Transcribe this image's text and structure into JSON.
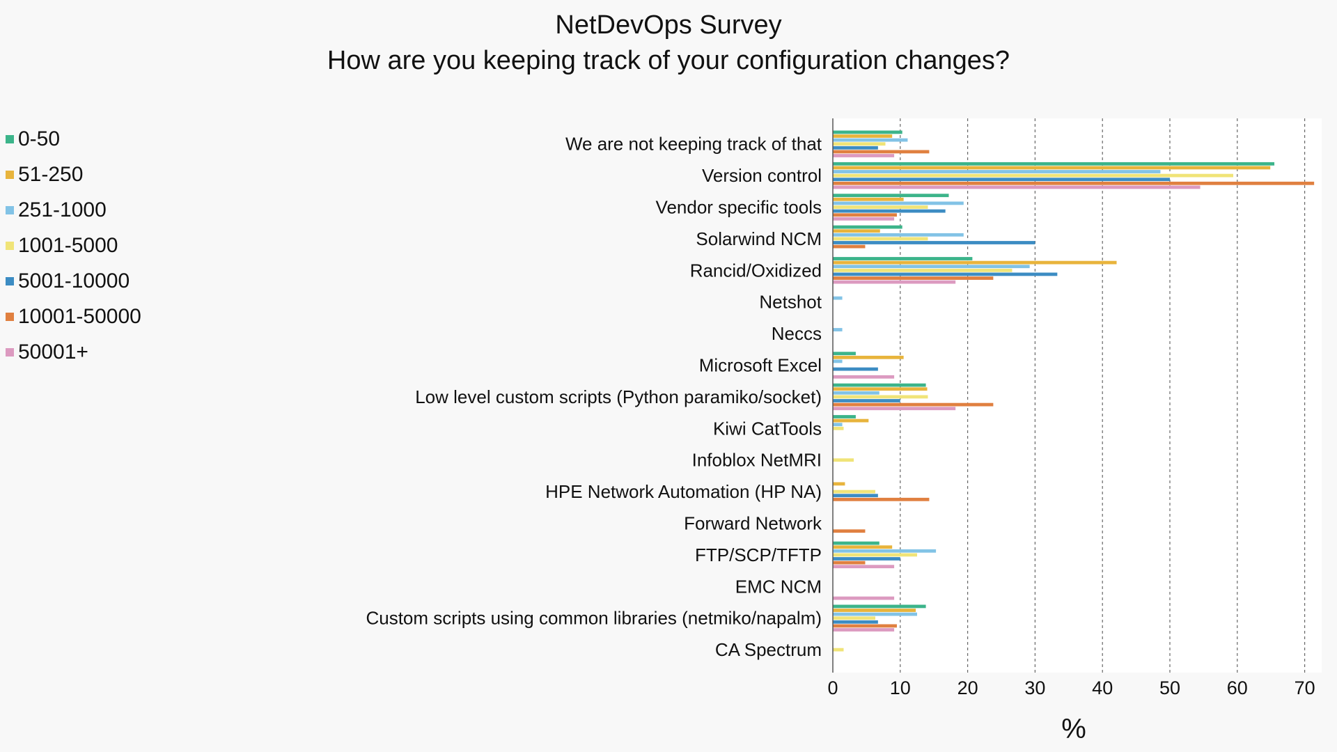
{
  "chart_data": {
    "type": "bar",
    "orientation": "horizontal",
    "title": "NetDevOps Survey",
    "subtitle": "How are you keeping track of your configuration changes?",
    "xlabel": "%",
    "xlim": [
      0,
      72
    ],
    "xticks": [
      0,
      10,
      20,
      30,
      40,
      50,
      60,
      70
    ],
    "grid": "vertical dashed",
    "legend_position": "left",
    "categories": [
      "We are not keeping track of that",
      "Version control",
      "Vendor specific tools",
      "Solarwind NCM",
      "Rancid/Oxidized",
      "Netshot",
      "Neccs",
      "Microsoft Excel",
      "Low level custom scripts (Python paramiko/socket)",
      "Kiwi CatTools",
      "Infoblox NetMRI",
      "HPE Network Automation (HP NA)",
      "Forward Network",
      "FTP/SCP/TFTP",
      "EMC NCM",
      "Custom scripts using common libraries (netmiko/napalm)",
      "CA Spectrum"
    ],
    "series": [
      {
        "name": "0-50",
        "color": "#3cb48a",
        "values": [
          10.3,
          65.5,
          17.2,
          10.3,
          20.7,
          0,
          0,
          3.4,
          13.8,
          3.4,
          0,
          0,
          0,
          6.9,
          0,
          13.8,
          0
        ]
      },
      {
        "name": "51-250",
        "color": "#e8b43c",
        "values": [
          8.8,
          64.9,
          10.5,
          7.0,
          42.1,
          0,
          0,
          10.5,
          14.0,
          5.3,
          0,
          1.8,
          0,
          8.8,
          0,
          12.3,
          0
        ]
      },
      {
        "name": "251-1000",
        "color": "#82c3e6",
        "values": [
          11.1,
          48.6,
          19.4,
          19.4,
          29.2,
          1.4,
          1.4,
          1.4,
          6.9,
          1.4,
          0,
          0,
          0,
          15.3,
          0,
          12.5,
          0
        ]
      },
      {
        "name": "1001-5000",
        "color": "#f0e478",
        "values": [
          7.8,
          59.4,
          14.1,
          14.1,
          26.6,
          0,
          0,
          0,
          14.1,
          1.6,
          3.1,
          6.3,
          0,
          12.5,
          0,
          6.3,
          1.6
        ]
      },
      {
        "name": "5001-10000",
        "color": "#3c8cc3",
        "values": [
          6.7,
          50.0,
          16.7,
          30.0,
          33.3,
          0,
          0,
          6.7,
          10.0,
          0,
          0,
          6.7,
          0,
          10.0,
          0,
          6.7,
          0
        ]
      },
      {
        "name": "10001-50000",
        "color": "#e08040",
        "values": [
          14.3,
          71.4,
          9.5,
          4.8,
          23.8,
          0,
          0,
          0,
          23.8,
          0,
          0,
          14.3,
          4.8,
          4.8,
          0,
          9.5,
          0
        ]
      },
      {
        "name": "50001+",
        "color": "#dc9ac0",
        "values": [
          9.1,
          54.5,
          9.1,
          0,
          18.2,
          0,
          0,
          9.1,
          18.2,
          0,
          0,
          0,
          0,
          9.1,
          9.1,
          9.1,
          0
        ]
      }
    ]
  }
}
